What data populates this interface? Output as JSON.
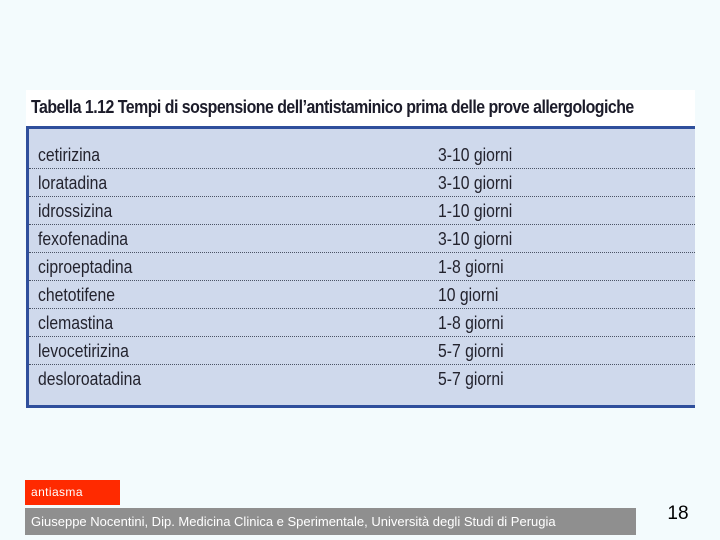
{
  "table": {
    "title": "Tabella 1.12 Tempi di sospensione dell’antistaminico prima delle prove allergologiche",
    "rows": [
      {
        "drug": "cetirizina",
        "time": "3-10 giorni"
      },
      {
        "drug": "loratadina",
        "time": "3-10 giorni"
      },
      {
        "drug": "idrossizina",
        "time": "1-10 giorni"
      },
      {
        "drug": "fexofenadina",
        "time": "3-10 giorni"
      },
      {
        "drug": "ciproeptadina",
        "time": "1-8 giorni"
      },
      {
        "drug": "chetotifene",
        "time": "10 giorni"
      },
      {
        "drug": "clemastina",
        "time": "1-8 giorni"
      },
      {
        "drug": "levocetirizina",
        "time": "5-7 giorni"
      },
      {
        "drug": "desloroatadina",
        "time": "5-7 giorni"
      }
    ],
    "border_color": "#2f4f9c",
    "fill_color": "#cfd9ec"
  },
  "tag": {
    "label": "antiasma",
    "color": "#ff2a00"
  },
  "footer": {
    "text": "Giuseppe Nocentini, Dip. Medicina Clinica e Sperimentale, Università degli Studi di Perugia",
    "color": "#8f8f8f"
  },
  "page": {
    "number": "18"
  }
}
